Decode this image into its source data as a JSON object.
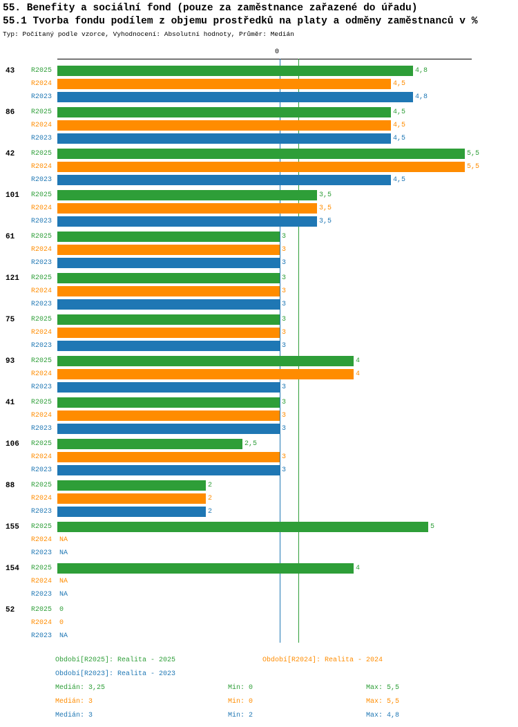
{
  "header": {
    "title1": "55. Benefity a sociální fond (pouze za zaměstnance zařazené do úřadu)",
    "title2": "55.1 Tvorba fondu podílem z objemu prostředků na platy a odměny zaměstnanců v %",
    "subtitle": "Typ: Počítaný podle vzorce, Vyhodnocení: Absolutní hodnoty, Průměr: Medián"
  },
  "chart_data": {
    "type": "bar",
    "orientation": "horizontal",
    "value_axis": {
      "min": 0,
      "max": 5.59,
      "top_tick_label": "0"
    },
    "grid": "median-lines-only",
    "legend_position": "bottom",
    "series": [
      {
        "name": "R2025",
        "color": "#2E9E38",
        "legend_label": "Období[R2025]: Realita - 2025",
        "median": 3.25,
        "median_label": "Medián: 3,25",
        "min_label": "Min: 0",
        "max_label": "Max: 5,5"
      },
      {
        "name": "R2024",
        "color": "#FF8C00",
        "legend_label": "Období[R2024]: Realita - 2024",
        "median": 3,
        "median_label": "Medián: 3",
        "min_label": "Min: 0",
        "max_label": "Max: 5,5"
      },
      {
        "name": "R2023",
        "color": "#1F77B4",
        "legend_label": "Období[R2023]: Realita - 2023",
        "median": 3,
        "median_label": "Medián: 3",
        "min_label": "Min: 2",
        "max_label": "Max: 4,8"
      }
    ],
    "groups": [
      {
        "id": "43",
        "values": [
          4.8,
          4.5,
          4.8
        ],
        "labels": [
          "4,8",
          "4,5",
          "4,8"
        ]
      },
      {
        "id": "86",
        "values": [
          4.5,
          4.5,
          4.5
        ],
        "labels": [
          "4,5",
          "4,5",
          "4,5"
        ]
      },
      {
        "id": "42",
        "values": [
          5.5,
          5.5,
          4.5
        ],
        "labels": [
          "5,5",
          "5,5",
          "4,5"
        ]
      },
      {
        "id": "101",
        "values": [
          3.5,
          3.5,
          3.5
        ],
        "labels": [
          "3,5",
          "3,5",
          "3,5"
        ]
      },
      {
        "id": "61",
        "values": [
          3,
          3,
          3
        ],
        "labels": [
          "3",
          "3",
          "3"
        ]
      },
      {
        "id": "121",
        "values": [
          3,
          3,
          3
        ],
        "labels": [
          "3",
          "3",
          "3"
        ]
      },
      {
        "id": "75",
        "values": [
          3,
          3,
          3
        ],
        "labels": [
          "3",
          "3",
          "3"
        ]
      },
      {
        "id": "93",
        "values": [
          4,
          4,
          3
        ],
        "labels": [
          "4",
          "4",
          "3"
        ]
      },
      {
        "id": "41",
        "values": [
          3,
          3,
          3
        ],
        "labels": [
          "3",
          "3",
          "3"
        ]
      },
      {
        "id": "106",
        "values": [
          2.5,
          3,
          3
        ],
        "labels": [
          "2,5",
          "3",
          "3"
        ]
      },
      {
        "id": "88",
        "values": [
          2,
          2,
          2
        ],
        "labels": [
          "2",
          "2",
          "2"
        ]
      },
      {
        "id": "155",
        "values": [
          5,
          null,
          null
        ],
        "labels": [
          "5",
          "NA",
          "NA"
        ]
      },
      {
        "id": "154",
        "values": [
          4,
          null,
          null
        ],
        "labels": [
          "4",
          "NA",
          "NA"
        ]
      },
      {
        "id": "52",
        "values": [
          0,
          0,
          null
        ],
        "labels": [
          "0",
          "0",
          "NA"
        ]
      }
    ]
  }
}
